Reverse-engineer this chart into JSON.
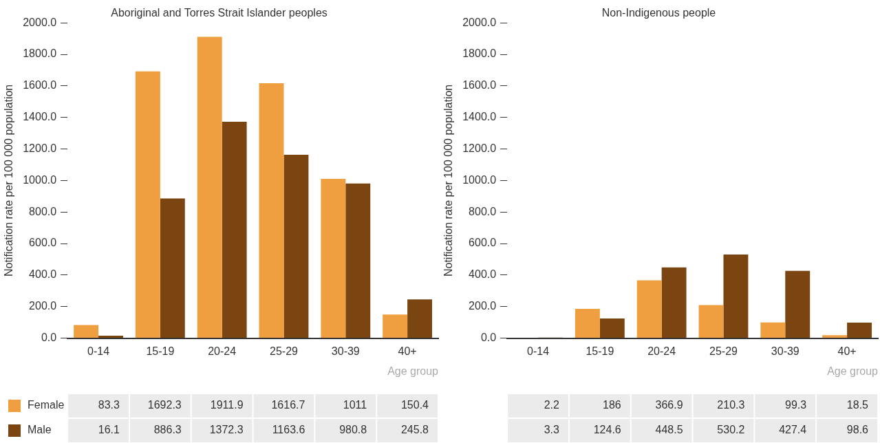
{
  "chart_data": [
    {
      "type": "bar",
      "title": "Aboriginal and Torres Strait Islander peoples",
      "xlabel": "Age group",
      "ylabel": "Notification rate per 100 000 population",
      "categories": [
        "0-14",
        "15-19",
        "20-24",
        "25-29",
        "30-39",
        "40+"
      ],
      "series": [
        {
          "name": "Female",
          "color": "#ef9f3f",
          "values": [
            83.3,
            1692.3,
            1911.9,
            1616.7,
            1011,
            150.4
          ]
        },
        {
          "name": "Male",
          "color": "#7a4510",
          "values": [
            16.1,
            886.3,
            1372.3,
            1163.6,
            980.8,
            245.8
          ]
        }
      ],
      "ylim": [
        0,
        2000
      ],
      "yticks": [
        {
          "value": 0,
          "label": "0.0"
        },
        {
          "value": 200,
          "label": "200.0"
        },
        {
          "value": 400,
          "label": "400.0"
        },
        {
          "value": 600,
          "label": "600.0"
        },
        {
          "value": 800,
          "label": "800.0"
        },
        {
          "value": 1000,
          "label": "1000.0"
        },
        {
          "value": 1200,
          "label": "1200.0"
        },
        {
          "value": 1400,
          "label": "1400.0"
        },
        {
          "value": 1600,
          "label": "1600.0"
        },
        {
          "value": 1800,
          "label": "1800.0"
        },
        {
          "value": 2000,
          "label": "2000.0"
        }
      ],
      "grid": false,
      "legend": "bottom left",
      "data_labels": true
    },
    {
      "type": "bar",
      "title": "Non-Indigenous people",
      "xlabel": "Age group",
      "ylabel": "Notification rate per 100 000 population",
      "categories": [
        "0-14",
        "15-19",
        "20-24",
        "25-29",
        "30-39",
        "40+"
      ],
      "series": [
        {
          "color": "#ef9f3f",
          "values": [
            2.2,
            186,
            366.9,
            210.3,
            99.3,
            18.5
          ]
        },
        {
          "color": "#7a4510",
          "values": [
            3.3,
            124.6,
            448.5,
            530.2,
            427.4,
            98.6
          ]
        }
      ],
      "ylim": [
        0,
        2000
      ],
      "yticks": [
        {
          "value": 0,
          "label": "0.0"
        },
        {
          "value": 200,
          "label": "200.0"
        },
        {
          "value": 400,
          "label": "400.0"
        },
        {
          "value": 600,
          "label": "600.0"
        },
        {
          "value": 800,
          "label": "800.0"
        },
        {
          "value": 1000,
          "label": "1000.0"
        },
        {
          "value": 1200,
          "label": "1200.0"
        },
        {
          "value": 1400,
          "label": "1400.0"
        },
        {
          "value": 1600,
          "label": "1600.0"
        },
        {
          "value": 1800,
          "label": "1800.0"
        },
        {
          "value": 2000,
          "label": "2000.0"
        }
      ],
      "grid": false,
      "legend": false,
      "data_labels": true
    }
  ]
}
